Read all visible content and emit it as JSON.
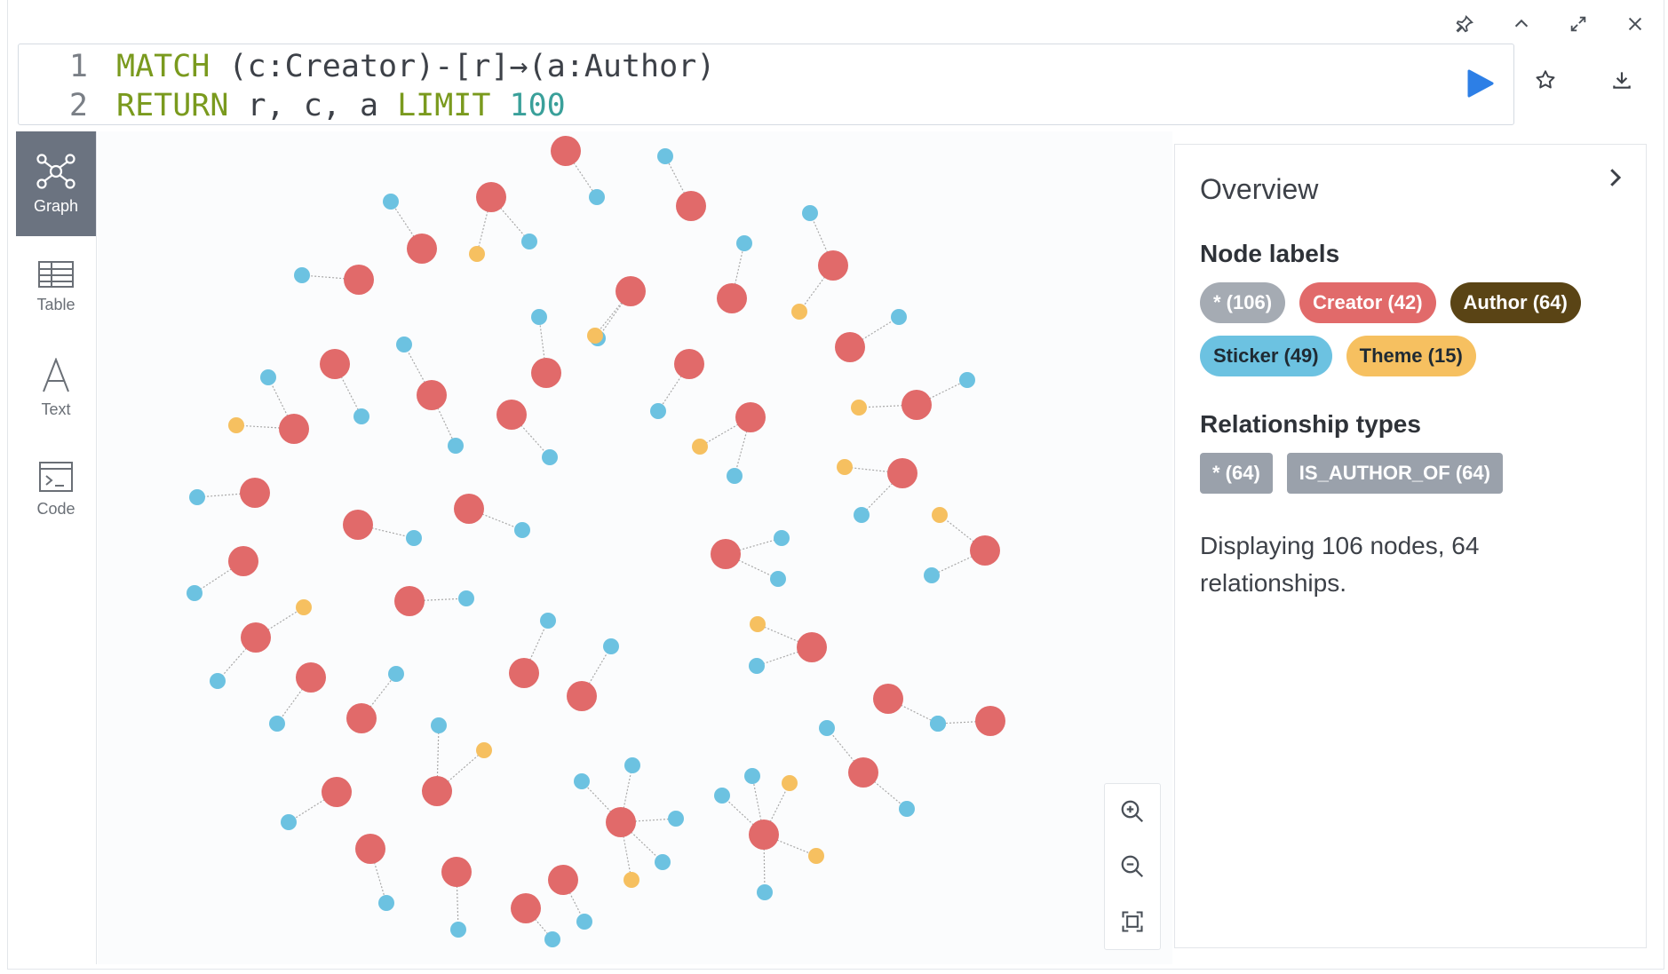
{
  "window": {
    "icons": [
      "pin-icon",
      "chevron-up-icon",
      "expand-icon",
      "close-icon"
    ]
  },
  "editor": {
    "lines": [
      {
        "num": "1",
        "tokens": [
          {
            "t": "MATCH",
            "c": "kw"
          },
          {
            "t": " (",
            "c": "p"
          },
          {
            "t": "c:Creator",
            "c": "lbl"
          },
          {
            "t": ")-[",
            "c": "p"
          },
          {
            "t": "r",
            "c": "lbl"
          },
          {
            "t": "]→(",
            "c": "p"
          },
          {
            "t": "a:Author",
            "c": "lbl"
          },
          {
            "t": ")",
            "c": "p"
          }
        ]
      },
      {
        "num": "2",
        "tokens": [
          {
            "t": "RETURN",
            "c": "kw"
          },
          {
            "t": " r, c, a ",
            "c": "p"
          },
          {
            "t": "LIMIT",
            "c": "kw"
          },
          {
            "t": " ",
            "c": "p"
          },
          {
            "t": "100",
            "c": "num"
          }
        ]
      }
    ],
    "run_color": "#2d7fe6"
  },
  "sidebar": {
    "items": [
      {
        "label": "Graph",
        "icon": "graph-icon",
        "active": true
      },
      {
        "label": "Table",
        "icon": "table-icon",
        "active": false
      },
      {
        "label": "Text",
        "icon": "text-icon",
        "active": false
      },
      {
        "label": "Code",
        "icon": "code-icon",
        "active": false
      }
    ]
  },
  "graph": {
    "colors": {
      "creator": "#e16a6a",
      "sticker": "#6cc2e1",
      "theme": "#f6c060",
      "edge": "#a9a9a9"
    }
  },
  "overview": {
    "title": "Overview",
    "node_labels_heading": "Node labels",
    "node_labels": [
      {
        "label": "* (106)",
        "bg": "#a5abb3",
        "fg": "#ffffff"
      },
      {
        "label": "Creator (42)",
        "bg": "#e16a6a",
        "fg": "#ffffff"
      },
      {
        "label": "Author (64)",
        "bg": "#5a4415",
        "fg": "#ffffff"
      },
      {
        "label": "Sticker (49)",
        "bg": "#6cc2e1",
        "fg": "#1f2a33"
      },
      {
        "label": "Theme (15)",
        "bg": "#f6c060",
        "fg": "#1f2a33"
      }
    ],
    "rel_types_heading": "Relationship types",
    "rel_types": [
      {
        "label": "* (64)"
      },
      {
        "label": "IS_AUTHOR_OF (64)"
      }
    ],
    "summary": "Displaying 106 nodes, 64 relationships."
  }
}
